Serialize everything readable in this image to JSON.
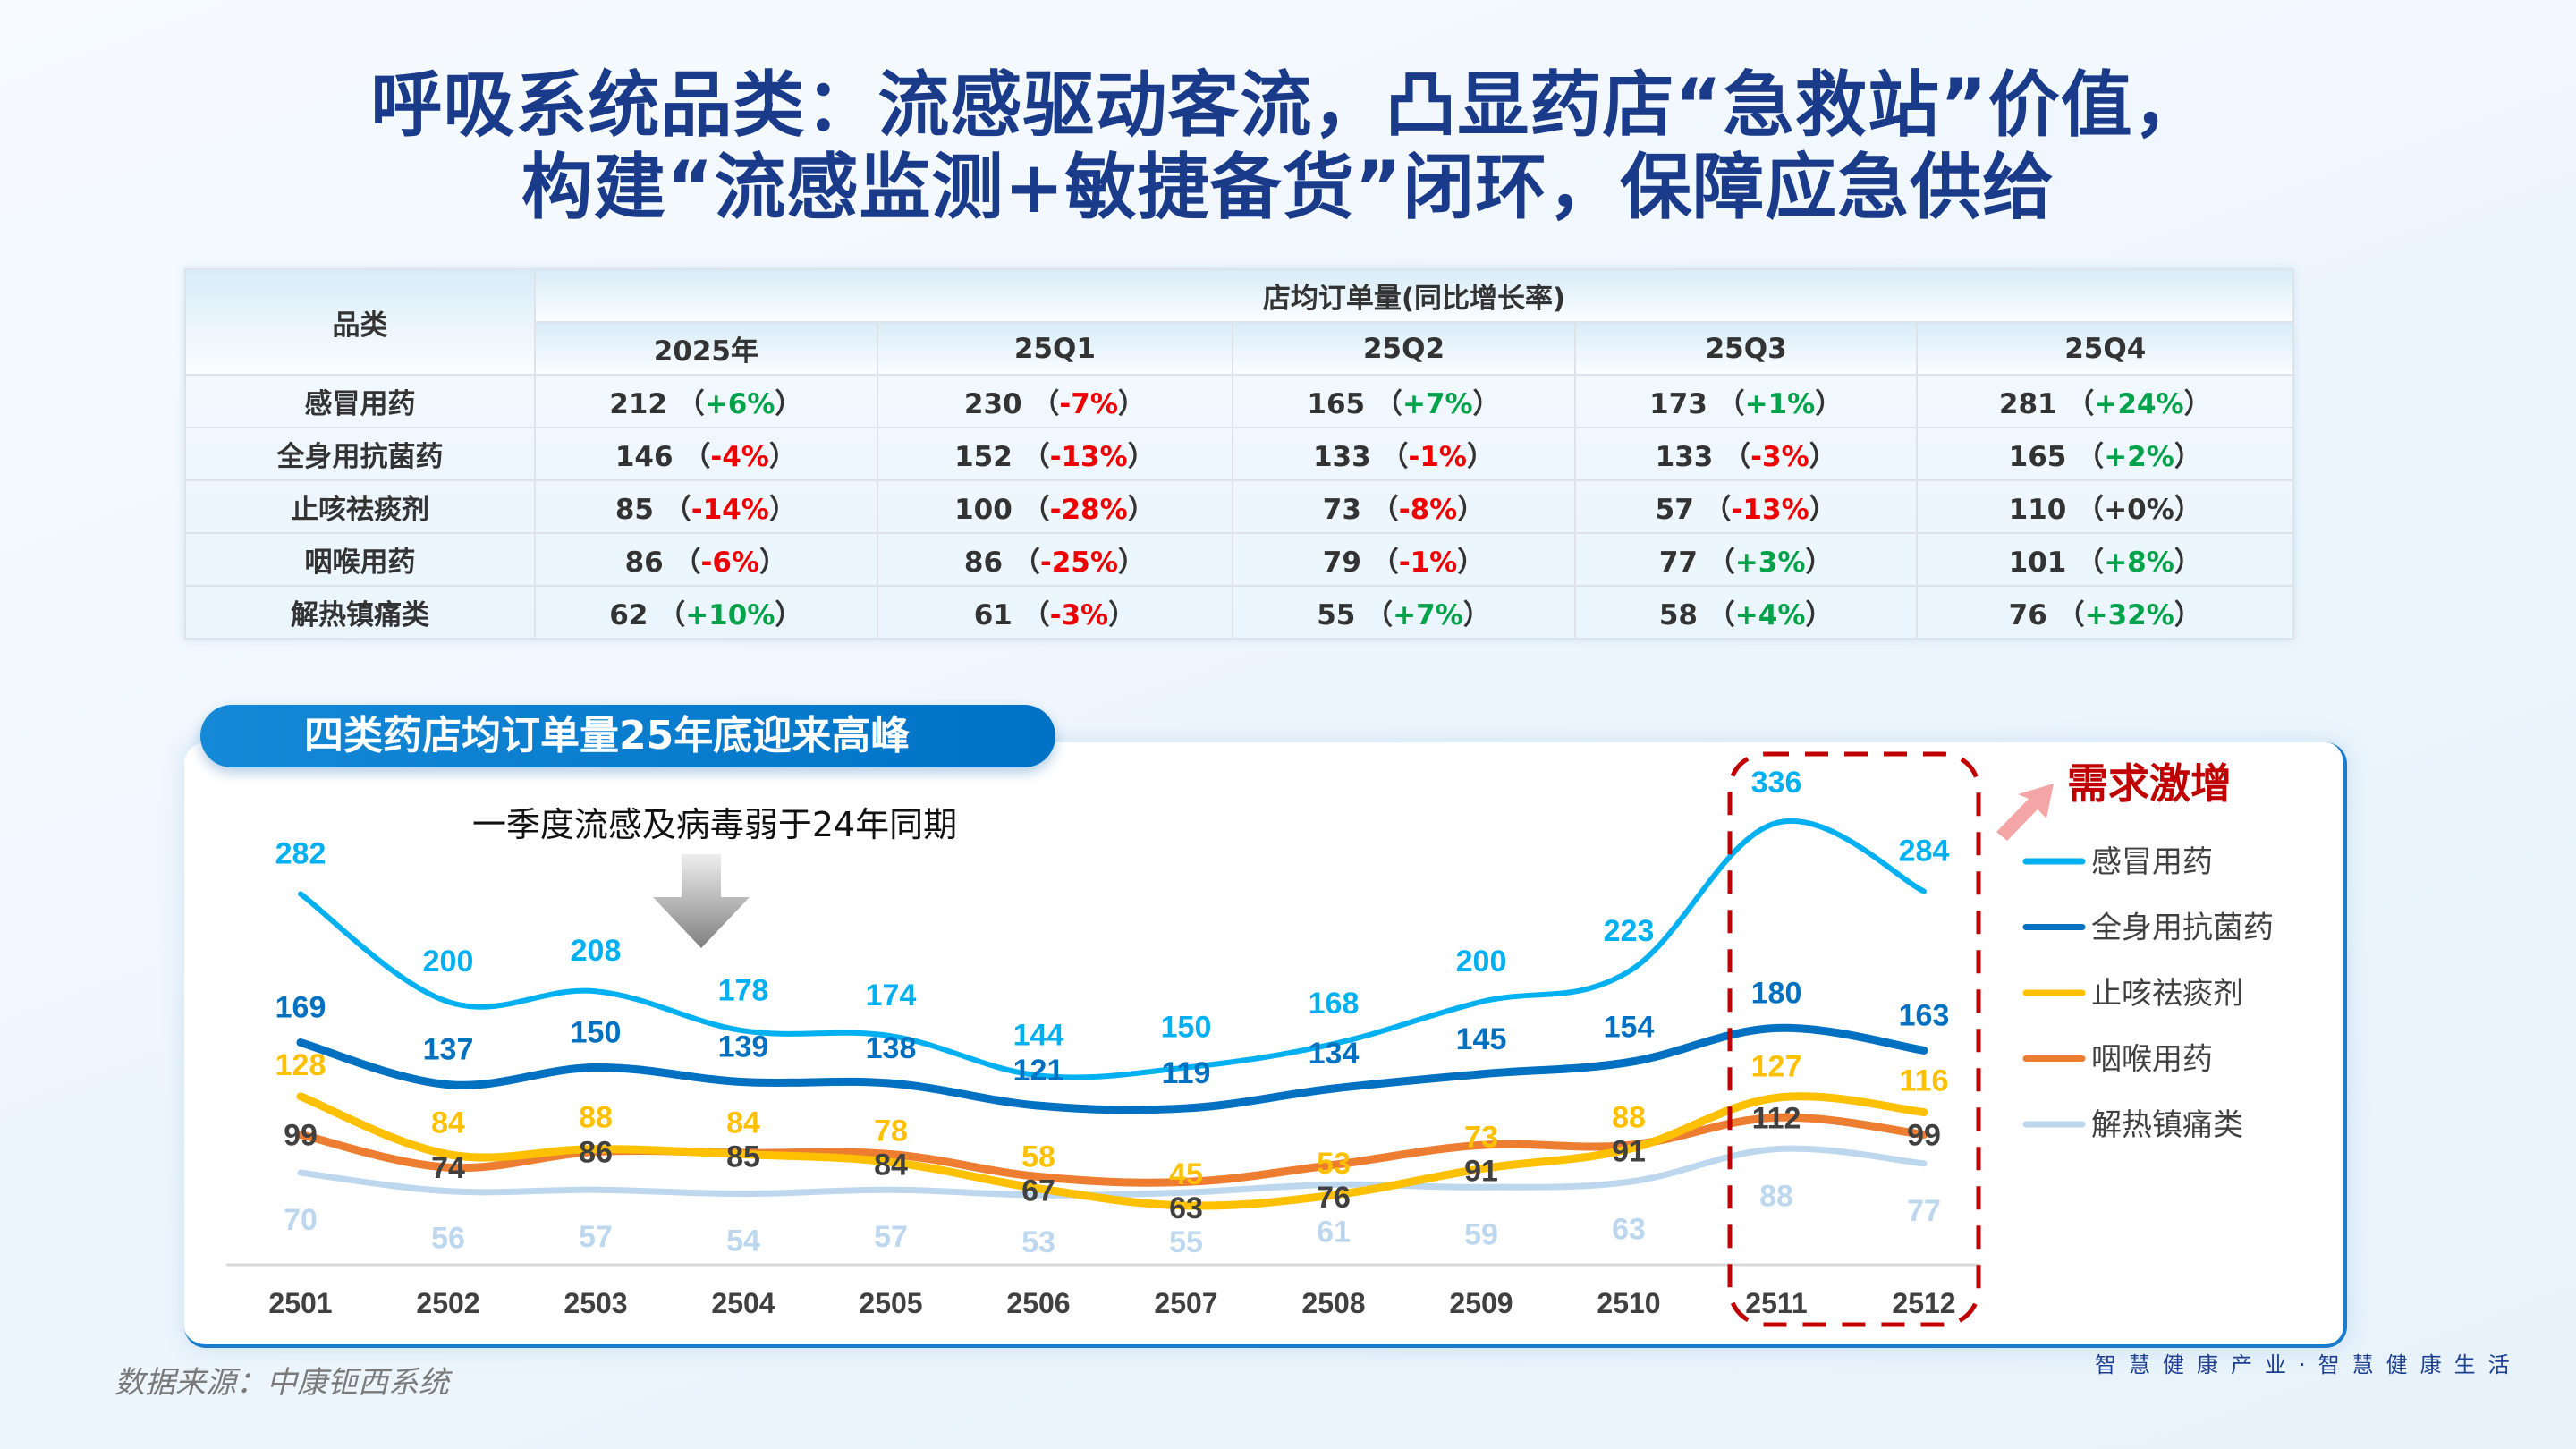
{
  "title": {
    "line1": "呼吸系统品类：流感驱动客流，凸显药店“急救站”价值，",
    "line2": "构建“流感监测+敏捷备货”闭环，保障应急供给"
  },
  "table": {
    "category_header": "品类",
    "group_header": "店均订单量(同比增长率)",
    "columns": [
      "2025年",
      "25Q1",
      "25Q2",
      "25Q3",
      "25Q4"
    ],
    "rows": [
      {
        "category": "感冒用药",
        "cells": [
          {
            "value": "212",
            "change": "+6%"
          },
          {
            "value": "230",
            "change": "-7%"
          },
          {
            "value": "165",
            "change": "+7%"
          },
          {
            "value": "173",
            "change": "+1%"
          },
          {
            "value": "281",
            "change": "+24%"
          }
        ]
      },
      {
        "category": "全身用抗菌药",
        "cells": [
          {
            "value": "146",
            "change": "-4%"
          },
          {
            "value": "152",
            "change": "-13%"
          },
          {
            "value": "133",
            "change": "-1%"
          },
          {
            "value": "133",
            "change": "-3%"
          },
          {
            "value": "165",
            "change": "+2%"
          }
        ]
      },
      {
        "category": "止咳祛痰剂",
        "cells": [
          {
            "value": "85",
            "change": "-14%"
          },
          {
            "value": "100",
            "change": "-28%"
          },
          {
            "value": "73",
            "change": "-8%"
          },
          {
            "value": "57",
            "change": "-13%"
          },
          {
            "value": "110",
            "change": "+0%"
          }
        ]
      },
      {
        "category": "咽喉用药",
        "cells": [
          {
            "value": "86",
            "change": "-6%"
          },
          {
            "value": "86",
            "change": "-25%"
          },
          {
            "value": "79",
            "change": "-1%"
          },
          {
            "value": "77",
            "change": "+3%"
          },
          {
            "value": "101",
            "change": "+8%"
          }
        ]
      },
      {
        "category": "解热镇痛类",
        "cells": [
          {
            "value": "62",
            "change": "+10%"
          },
          {
            "value": "61",
            "change": "-3%"
          },
          {
            "value": "55",
            "change": "+7%"
          },
          {
            "value": "58",
            "change": "+4%"
          },
          {
            "value": "76",
            "change": "+32%"
          }
        ]
      }
    ],
    "colors": {
      "positive": "#00a24a",
      "negative": "#ee0000"
    }
  },
  "chart_data": {
    "type": "line",
    "title": "四类药店均订单量25年底迎来高峰",
    "annotation": "一季度流感及病毒弱于24年同期",
    "highlight_label": "需求激增",
    "highlight_range": [
      "2511",
      "2512"
    ],
    "x": [
      "2501",
      "2502",
      "2503",
      "2504",
      "2505",
      "2506",
      "2507",
      "2508",
      "2509",
      "2510",
      "2511",
      "2512"
    ],
    "ylim": [
      0,
      340
    ],
    "grid": false,
    "legend_position": "right",
    "series": [
      {
        "name": "感冒用药",
        "color": "#00b0f0",
        "values": [
          282,
          200,
          208,
          178,
          174,
          144,
          150,
          168,
          200,
          223,
          336,
          284
        ]
      },
      {
        "name": "全身用抗菌药",
        "color": "#0070c0",
        "values": [
          169,
          137,
          150,
          139,
          138,
          121,
          119,
          134,
          145,
          154,
          180,
          163
        ]
      },
      {
        "name": "止咳祛痰剂",
        "color": "#ffc000",
        "values": [
          128,
          84,
          88,
          84,
          78,
          58,
          45,
          53,
          73,
          88,
          127,
          116
        ]
      },
      {
        "name": "咽喉用药",
        "color": "#ed7d31",
        "label_color": "#404040",
        "values": [
          99,
          74,
          86,
          85,
          84,
          67,
          63,
          76,
          91,
          91,
          112,
          99
        ]
      },
      {
        "name": "解热镇痛类",
        "color": "#bdd7ee",
        "values": [
          70,
          56,
          57,
          54,
          57,
          53,
          55,
          61,
          59,
          63,
          88,
          77
        ]
      }
    ]
  },
  "footer": {
    "source": "数据来源：中康钷西系统",
    "slogan": "智慧健康产业·智慧健康生活"
  }
}
